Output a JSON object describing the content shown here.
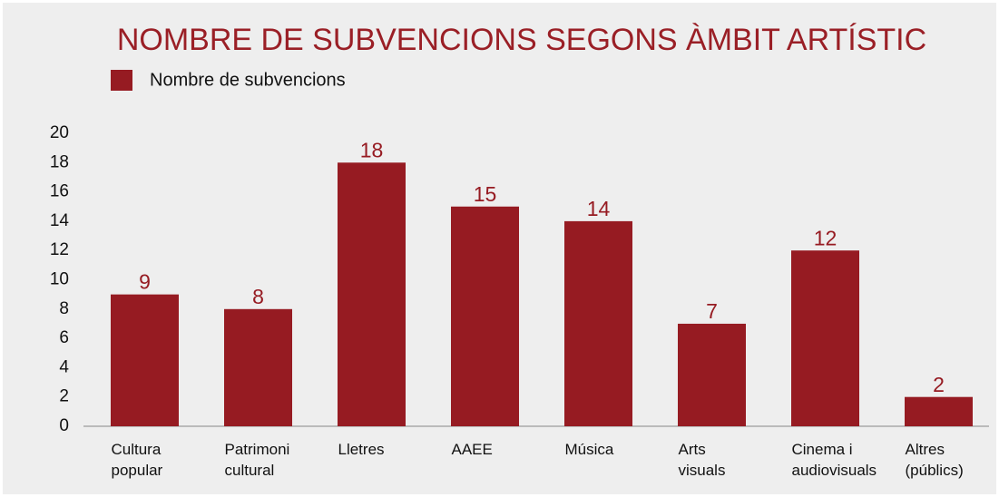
{
  "chart_data": {
    "type": "bar",
    "title": "NOMBRE DE SUBVENCIONS SEGONS ÀMBIT ARTÍSTIC",
    "categories": [
      "Cultura\npopular",
      "Patrimoni\ncultural",
      "Lletres",
      "AAEE",
      "Música",
      "Arts\nvisuals",
      "Cinema i\naudiovisuals",
      "Altres\n(públics)"
    ],
    "series": [
      {
        "name": "Nombre de subvencions",
        "color": "#961b22",
        "values": [
          9,
          8,
          18,
          15,
          14,
          7,
          12,
          2
        ]
      }
    ],
    "ylim": [
      0,
      20
    ],
    "yticks": [
      0,
      2,
      4,
      6,
      8,
      10,
      12,
      14,
      16,
      18,
      20
    ],
    "grid": false,
    "legend": "top-left"
  }
}
